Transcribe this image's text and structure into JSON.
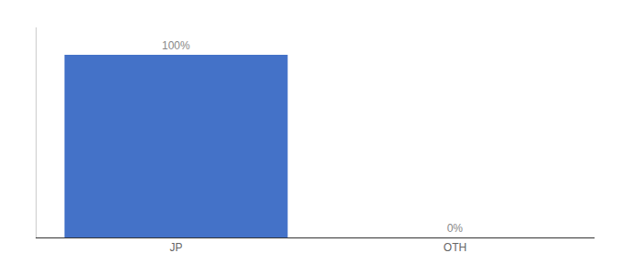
{
  "chart_data": {
    "type": "bar",
    "categories": [
      "JP",
      "OTH"
    ],
    "values": [
      100,
      0
    ],
    "value_labels": [
      "100%",
      "0%"
    ],
    "data_labels": true,
    "color": "#4472c8",
    "ylim": [
      0,
      115
    ],
    "grid": false,
    "tick_labels": "x"
  }
}
